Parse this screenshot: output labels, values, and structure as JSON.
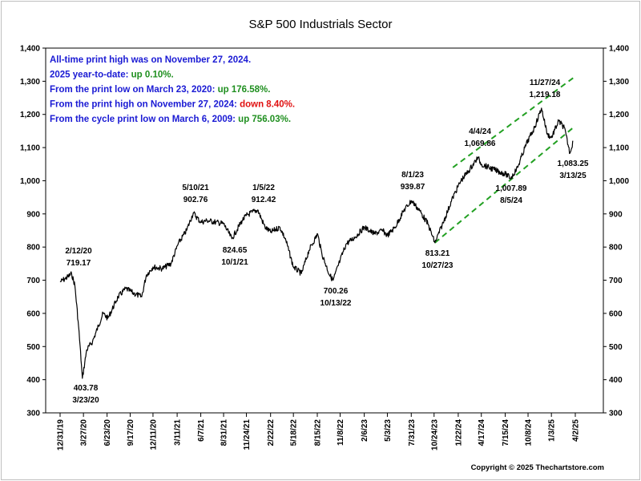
{
  "chart_data": {
    "type": "line",
    "title": "S&P 500 Industrials Sector",
    "xlabel": "",
    "ylabel": "",
    "ylim": [
      300,
      1400
    ],
    "yticks": [
      "300",
      "400",
      "500",
      "600",
      "700",
      "800",
      "900",
      "1,000",
      "1,100",
      "1,200",
      "1,300",
      "1,400"
    ],
    "ytick_values": [
      300,
      400,
      500,
      600,
      700,
      800,
      900,
      1000,
      1100,
      1200,
      1300,
      1400
    ],
    "xlim": [
      "2019-12-31",
      "2025-04-02"
    ],
    "xticks": [
      "12/31/19",
      "3/27/20",
      "6/23/20",
      "9/17/20",
      "12/11/20",
      "3/11/21",
      "6/7/21",
      "8/31/21",
      "11/24/21",
      "2/22/22",
      "5/18/22",
      "8/15/22",
      "11/8/22",
      "2/6/23",
      "5/3/23",
      "7/31/23",
      "10/24/23",
      "1/22/24",
      "4/17/24",
      "7/15/24",
      "10/8/24",
      "1/3/25",
      "4/2/25"
    ],
    "xtick_dates": [
      "2019-12-31",
      "2020-03-27",
      "2020-06-23",
      "2020-09-17",
      "2020-12-11",
      "2021-03-11",
      "2021-06-07",
      "2021-08-31",
      "2021-11-24",
      "2022-02-22",
      "2022-05-18",
      "2022-08-15",
      "2022-11-08",
      "2023-02-06",
      "2023-05-03",
      "2023-07-31",
      "2023-10-24",
      "2024-01-22",
      "2024-04-17",
      "2024-07-15",
      "2024-10-08",
      "2025-01-03",
      "2025-04-02"
    ],
    "grid": false,
    "series": [
      {
        "name": "",
        "color": "#000000",
        "x": [
          "2019-12-31",
          "2020-01-20",
          "2020-02-12",
          "2020-02-24",
          "2020-03-09",
          "2020-03-23",
          "2020-04-08",
          "2020-04-30",
          "2020-06-08",
          "2020-06-26",
          "2020-08-03",
          "2020-09-01",
          "2020-10-01",
          "2020-10-30",
          "2020-11-16",
          "2020-12-11",
          "2021-01-15",
          "2021-02-16",
          "2021-03-15",
          "2021-04-15",
          "2021-05-10",
          "2021-06-07",
          "2021-07-01",
          "2021-08-02",
          "2021-08-31",
          "2021-10-01",
          "2021-11-08",
          "2021-11-24",
          "2021-12-15",
          "2022-01-05",
          "2022-02-01",
          "2022-02-22",
          "2022-03-29",
          "2022-04-20",
          "2022-05-18",
          "2022-06-17",
          "2022-07-15",
          "2022-08-16",
          "2022-09-01",
          "2022-09-30",
          "2022-10-13",
          "2022-11-08",
          "2022-12-01",
          "2023-01-03",
          "2023-02-06",
          "2023-03-15",
          "2023-04-15",
          "2023-05-03",
          "2023-06-01",
          "2023-07-03",
          "2023-08-01",
          "2023-08-31",
          "2023-10-01",
          "2023-10-27",
          "2023-11-30",
          "2024-01-02",
          "2024-02-01",
          "2024-03-01",
          "2024-04-04",
          "2024-04-17",
          "2024-05-15",
          "2024-06-14",
          "2024-07-16",
          "2024-08-05",
          "2024-08-30",
          "2024-10-01",
          "2024-11-01",
          "2024-11-27",
          "2024-12-19",
          "2025-01-03",
          "2025-01-30",
          "2025-02-20",
          "2025-03-13",
          "2025-03-25"
        ],
        "values": [
          695,
          705,
          719,
          685,
          560,
          404,
          490,
          515,
          600,
          585,
          650,
          675,
          660,
          650,
          715,
          740,
          735,
          750,
          810,
          850,
          903,
          875,
          880,
          875,
          870,
          825,
          880,
          895,
          905,
          912,
          860,
          845,
          860,
          820,
          740,
          720,
          790,
          840,
          780,
          715,
          700,
          760,
          810,
          830,
          860,
          840,
          850,
          835,
          860,
          910,
          940,
          910,
          870,
          813,
          880,
          950,
          1000,
          1030,
          1070,
          1050,
          1040,
          1030,
          1020,
          1008,
          1040,
          1110,
          1160,
          1219,
          1140,
          1130,
          1180,
          1160,
          1083,
          1120
        ]
      }
    ],
    "trend_lines": [
      {
        "name": "",
        "color": "#22a022",
        "x": [
          "2023-10-27",
          "2025-03-25"
        ],
        "values": [
          813,
          1160
        ]
      },
      {
        "name": "",
        "color": "#22a022",
        "x": [
          "2024-01-02",
          "2025-03-25"
        ],
        "values": [
          1040,
          1310
        ]
      }
    ],
    "annotations": [
      {
        "label": "2/12/20",
        "value": "719.17"
      },
      {
        "label": "403.78",
        "value": "3/23/20"
      },
      {
        "label": "5/10/21",
        "value": "902.76"
      },
      {
        "label": "1/5/22",
        "value": "912.42"
      },
      {
        "label": "824.65",
        "value": "10/1/21"
      },
      {
        "label": "700.26",
        "value": "10/13/22"
      },
      {
        "label": "8/1/23",
        "value": "939.87"
      },
      {
        "label": "813.21",
        "value": "10/27/23"
      },
      {
        "label": "4/4/24",
        "value": "1,069.86"
      },
      {
        "label": "1,007.89",
        "value": "8/5/24"
      },
      {
        "label": "11/27/24",
        "value": "1,219.18"
      },
      {
        "label": "1,083.25",
        "value": "3/13/25"
      }
    ]
  },
  "stats": [
    {
      "text": "All-time print high was on November 27, 2024.",
      "value": "",
      "color": "#1a1ad4",
      "value_color": "#1a1ad4"
    },
    {
      "text": "2025 year-to-date:  ",
      "value": "up 0.10%.",
      "color": "#1a1ad4",
      "value_color": "#1f8f1f"
    },
    {
      "text": "From the print low on March 23, 2020:  ",
      "value": "up 176.58%.",
      "color": "#1a1ad4",
      "value_color": "#1f8f1f"
    },
    {
      "text": "From the print high on November 27, 2024:  ",
      "value": "down 8.40%.",
      "color": "#1a1ad4",
      "value_color": "#e01010"
    },
    {
      "text": "From the cycle print low on March 6, 2009:  ",
      "value": "up 756.03%.",
      "color": "#1a1ad4",
      "value_color": "#1f8f1f"
    }
  ],
  "copyright": "Copyright © 2025 Thechartstore.com"
}
